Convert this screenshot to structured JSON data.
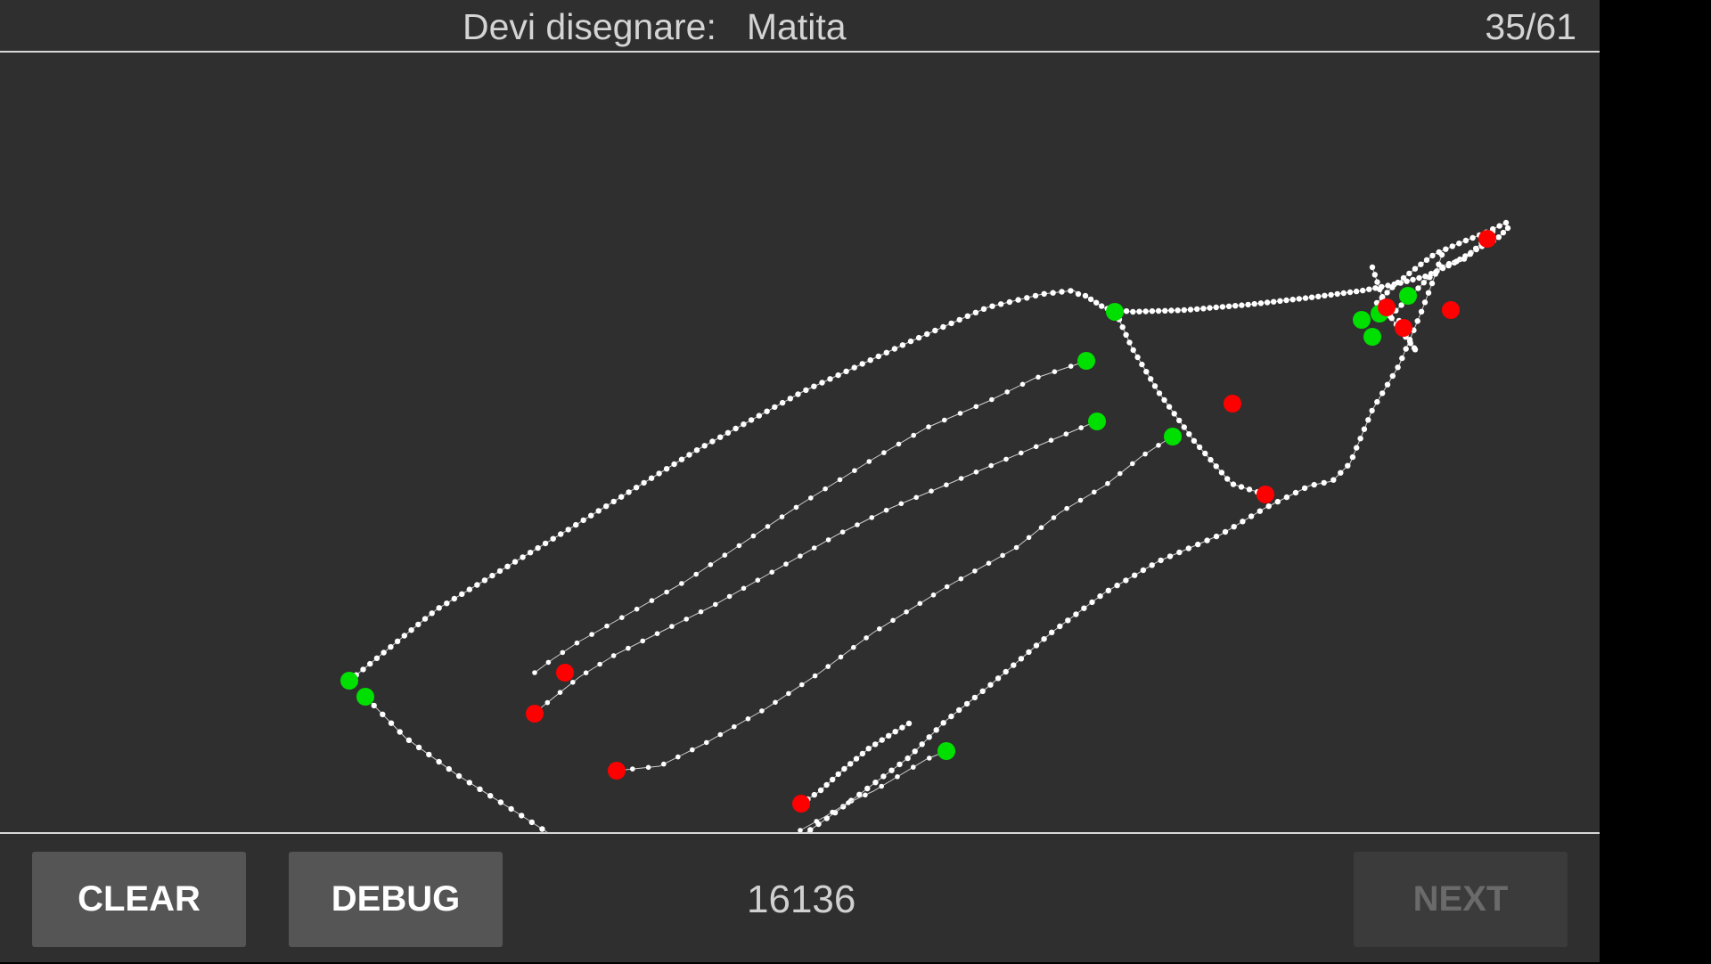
{
  "header": {
    "prompt_label": "Devi disegnare:",
    "target_word": "Matita",
    "progress": "35/61"
  },
  "footer": {
    "clear_label": "CLEAR",
    "debug_label": "DEBUG",
    "score": "16136",
    "next_label": "NEXT"
  },
  "colors": {
    "background": "#2f2f2f",
    "stroke_point": "#ffffff",
    "stroke_start": "#00e000",
    "stroke_end": "#ff0000",
    "disabled_text": "#6a6a6a"
  }
}
